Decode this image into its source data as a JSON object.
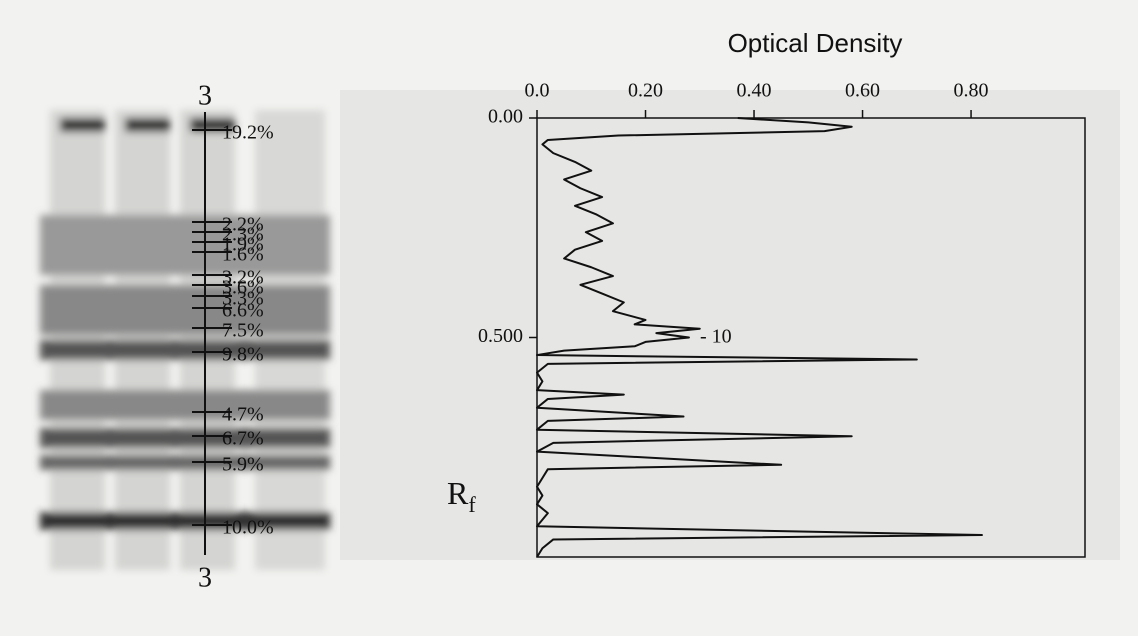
{
  "chart_data": {
    "type": "line",
    "title": "Optical Density",
    "ylabel": {
      "base": "R",
      "subscript": "f"
    },
    "annotation": "- 10",
    "x": [
      0.0,
      0.01,
      0.02,
      0.03,
      0.04,
      0.05,
      0.06,
      0.08,
      0.1,
      0.12,
      0.14,
      0.16,
      0.18,
      0.2,
      0.22,
      0.24,
      0.26,
      0.28,
      0.3,
      0.32,
      0.34,
      0.36,
      0.38,
      0.4,
      0.42,
      0.44,
      0.46,
      0.47,
      0.48,
      0.49,
      0.5,
      0.51,
      0.52,
      0.53,
      0.54,
      0.55,
      0.56,
      0.58,
      0.6,
      0.62,
      0.63,
      0.64,
      0.66,
      0.68,
      0.69,
      0.71,
      0.725,
      0.74,
      0.76,
      0.79,
      0.8,
      0.82,
      0.84,
      0.86,
      0.88,
      0.9,
      0.93,
      0.95,
      0.96,
      0.98,
      1.0
    ],
    "series": [
      {
        "color": "#111111",
        "values": [
          0.37,
          0.5,
          0.58,
          0.53,
          0.15,
          0.02,
          0.01,
          0.03,
          0.07,
          0.1,
          0.05,
          0.08,
          0.12,
          0.07,
          0.11,
          0.14,
          0.09,
          0.12,
          0.07,
          0.05,
          0.1,
          0.14,
          0.08,
          0.12,
          0.16,
          0.14,
          0.2,
          0.18,
          0.3,
          0.22,
          0.28,
          0.2,
          0.18,
          0.05,
          0.0,
          0.7,
          0.02,
          0.0,
          0.01,
          0.0,
          0.16,
          0.02,
          0.0,
          0.27,
          0.02,
          0.0,
          0.58,
          0.03,
          0.0,
          0.45,
          0.02,
          0.01,
          0.0,
          0.01,
          0.0,
          0.02,
          0.0,
          0.82,
          0.03,
          0.01,
          0.0
        ]
      }
    ],
    "xlim": [
      0,
      1.01
    ],
    "ylim": [
      0,
      1.0
    ],
    "xticks": [
      {
        "value": 0,
        "label": "0.0"
      },
      {
        "value": 0.2,
        "label": "0.20"
      },
      {
        "value": 0.4,
        "label": "0.40"
      },
      {
        "value": 0.6,
        "label": "0.60"
      },
      {
        "value": 0.8,
        "label": "0.80"
      }
    ],
    "yticks": [
      {
        "value": 0,
        "label": "0.00"
      },
      {
        "value": 0.5,
        "label": "0.500"
      }
    ]
  },
  "gel": {
    "top_label": "3",
    "bottom_label": "3",
    "bands": [
      "19.2%",
      "2.2%",
      "2.3%",
      "1.9%",
      "1.6%",
      "3.2%",
      "3.6%",
      "3.3%",
      "6.6%",
      "7.5%",
      "9.8%",
      "4.7%",
      "6.7%",
      "5.9%",
      "10.0%"
    ]
  }
}
